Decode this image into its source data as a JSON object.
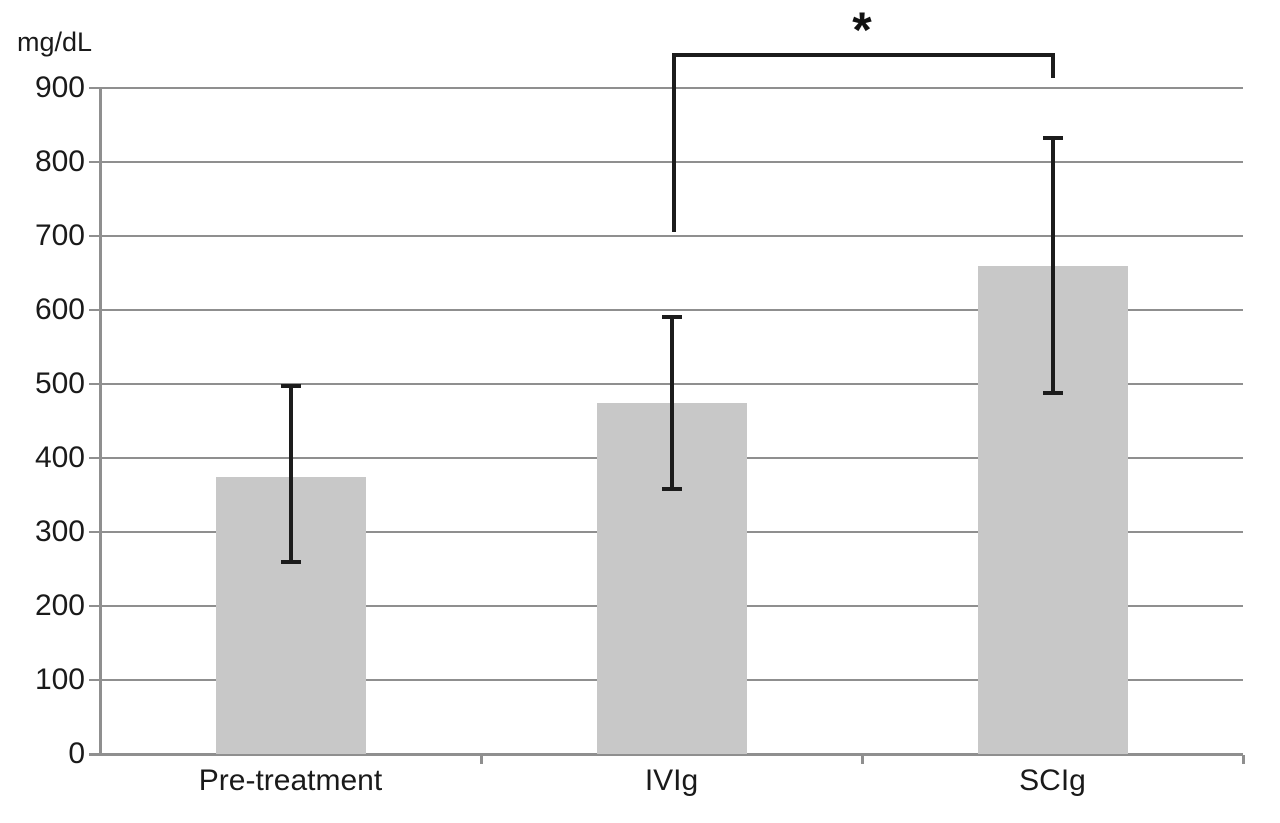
{
  "chart": {
    "unit_label": "mg/dL",
    "significance_marker": "*"
  },
  "chart_data": {
    "type": "bar",
    "ylabel": "mg/dL",
    "categories": [
      "Pre-treatment",
      "IVIg",
      "SCIg"
    ],
    "values": [
      375,
      475,
      660
    ],
    "error_bars": [
      {
        "low": 260,
        "high": 497
      },
      {
        "low": 358,
        "high": 591
      },
      {
        "low": 488,
        "high": 833
      }
    ],
    "ylim": [
      0,
      900
    ],
    "ytick_step": 100,
    "grid": true,
    "legend": "none",
    "bar_color": "#c8c8c8",
    "gridline_color": "#8f8f8f",
    "axis_color": "#8f8f8f",
    "error_color": "#1c1c1c",
    "text_color": "#1a1a1a",
    "significance": {
      "label": "*",
      "between": [
        "IVIg",
        "SCIg"
      ]
    }
  }
}
